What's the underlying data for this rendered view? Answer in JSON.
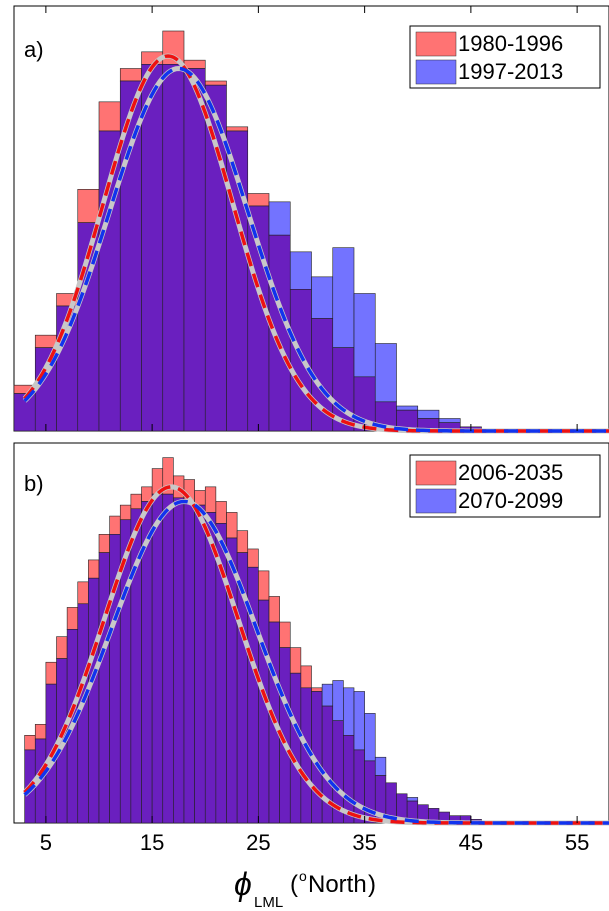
{
  "chart_data": [
    {
      "type": "bar",
      "panel_label": "a)",
      "xlim": [
        2,
        58
      ],
      "xticks": [
        5,
        15,
        25,
        35,
        45,
        55
      ],
      "bin_width": 2,
      "legend_position": "top-right",
      "series": [
        {
          "name": "1980-1996",
          "color": "#ff5a5a",
          "bin_centers": [
            3,
            5,
            7,
            9,
            11,
            13,
            15,
            17,
            19,
            21,
            23,
            25,
            27,
            29,
            31,
            33,
            35,
            37,
            39,
            41,
            43,
            45
          ],
          "values": [
            0.11,
            0.23,
            0.33,
            0.58,
            0.79,
            0.87,
            0.91,
            0.96,
            0.89,
            0.84,
            0.73,
            0.57,
            0.47,
            0.34,
            0.27,
            0.2,
            0.13,
            0.07,
            0.05,
            0.03,
            0.02,
            0.01
          ],
          "fit": {
            "mean": 16.5,
            "sd": 6.1,
            "peak": 0.9
          }
        },
        {
          "name": "1997-2013",
          "color": "#5a5aff",
          "bin_centers": [
            3,
            5,
            7,
            9,
            11,
            13,
            15,
            17,
            19,
            21,
            23,
            25,
            27,
            29,
            31,
            33,
            35,
            37,
            39,
            41,
            43,
            45
          ],
          "values": [
            0.09,
            0.2,
            0.3,
            0.5,
            0.72,
            0.84,
            0.88,
            0.88,
            0.87,
            0.83,
            0.72,
            0.54,
            0.55,
            0.43,
            0.37,
            0.44,
            0.33,
            0.21,
            0.06,
            0.05,
            0.03,
            0.01
          ],
          "fit": {
            "mean": 17.5,
            "sd": 6.5,
            "peak": 0.87
          }
        }
      ]
    },
    {
      "type": "bar",
      "panel_label": "b)",
      "xlim": [
        2,
        58
      ],
      "xticks": [
        5,
        15,
        25,
        35,
        45,
        55
      ],
      "xticklabels": [
        "5",
        "15",
        "25",
        "35",
        "45",
        "55"
      ],
      "xlabel_symbol": "ϕ",
      "xlabel_subscript": "LML",
      "xlabel_unit_sup": "o",
      "xlabel_unit": "North",
      "bin_width": 1,
      "legend_position": "top-right",
      "series": [
        {
          "name": "2006-2035",
          "color": "#ff5a5a",
          "bin_centers": [
            3.5,
            4.5,
            5.5,
            6.5,
            7.5,
            8.5,
            9.5,
            10.5,
            11.5,
            12.5,
            13.5,
            14.5,
            15.5,
            16.5,
            17.5,
            18.5,
            19.5,
            20.5,
            21.5,
            22.5,
            23.5,
            24.5,
            25.5,
            26.5,
            27.5,
            28.5,
            29.5,
            30.5,
            31.5,
            32.5,
            33.5,
            34.5,
            35.5,
            36.5,
            37.5,
            38.5,
            39.5,
            40.5,
            41.5,
            42.5,
            43.5,
            44.5,
            45.5
          ],
          "values": [
            0.24,
            0.27,
            0.44,
            0.51,
            0.59,
            0.66,
            0.72,
            0.79,
            0.84,
            0.87,
            0.9,
            0.92,
            0.97,
            1.0,
            0.95,
            0.94,
            0.91,
            0.92,
            0.88,
            0.85,
            0.8,
            0.75,
            0.69,
            0.62,
            0.55,
            0.48,
            0.43,
            0.37,
            0.32,
            0.28,
            0.24,
            0.2,
            0.17,
            0.13,
            0.11,
            0.08,
            0.06,
            0.05,
            0.04,
            0.03,
            0.02,
            0.02,
            0.01
          ],
          "fit": {
            "mean": 16.8,
            "sd": 6.3,
            "peak": 0.92
          }
        },
        {
          "name": "2070-2099",
          "color": "#5a5aff",
          "bin_centers": [
            3.5,
            4.5,
            5.5,
            6.5,
            7.5,
            8.5,
            9.5,
            10.5,
            11.5,
            12.5,
            13.5,
            14.5,
            15.5,
            16.5,
            17.5,
            18.5,
            19.5,
            20.5,
            21.5,
            22.5,
            23.5,
            24.5,
            25.5,
            26.5,
            27.5,
            28.5,
            29.5,
            30.5,
            31.5,
            32.5,
            33.5,
            34.5,
            35.5,
            36.5,
            37.5,
            38.5,
            39.5,
            40.5,
            41.5,
            42.5,
            43.5,
            44.5,
            45.5
          ],
          "values": [
            0.2,
            0.23,
            0.38,
            0.45,
            0.53,
            0.6,
            0.67,
            0.74,
            0.79,
            0.83,
            0.86,
            0.88,
            0.9,
            0.9,
            0.89,
            0.88,
            0.87,
            0.85,
            0.82,
            0.78,
            0.74,
            0.7,
            0.61,
            0.55,
            0.48,
            0.41,
            0.37,
            0.36,
            0.38,
            0.39,
            0.37,
            0.36,
            0.3,
            0.18,
            0.11,
            0.08,
            0.07,
            0.05,
            0.04,
            0.03,
            0.02,
            0.02,
            0.01
          ],
          "fit": {
            "mean": 18.0,
            "sd": 6.8,
            "peak": 0.88
          }
        }
      ]
    }
  ],
  "style": {
    "overlap_color": "#6a1fbf",
    "overlap_opacity": 1,
    "fill_opacity": 0.85,
    "pdf_fit_color": "#c8c8c8",
    "series_a_line": "#ee1111",
    "series_b_line": "#1133ee"
  }
}
